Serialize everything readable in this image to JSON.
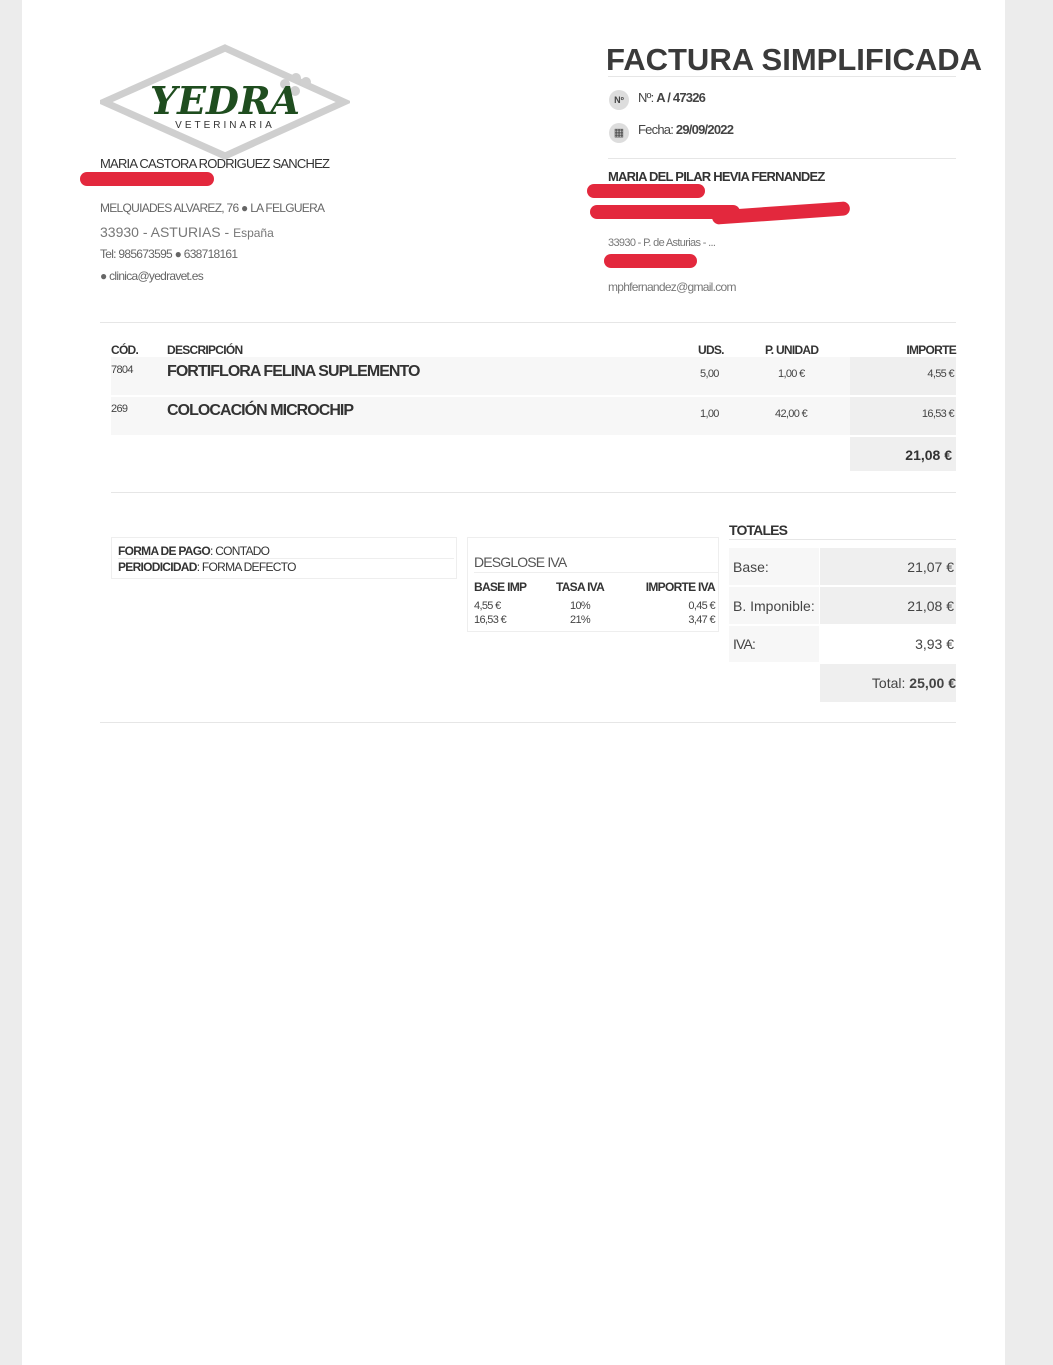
{
  "logo": {
    "name": "YEDRA",
    "sub": "VETERINARIA"
  },
  "issuer": {
    "name": "MARIA CASTORA RODRIGUEZ SANCHEZ",
    "address": "MELQUIADES ALVAREZ, 76 ● LA FELGUERA",
    "city": "33930 - ASTURIAS - ",
    "country": "España",
    "phone": "Tel: 985673595 ● 638718161",
    "email": "● clinica@yedravet.es"
  },
  "title": "FACTURA SIMPLIFICADA",
  "number": {
    "icon": "Nº",
    "label": "Nº: ",
    "value": "A / 47326"
  },
  "date": {
    "icon": "calendar-icon",
    "label": "Fecha: ",
    "value": "29/09/2022"
  },
  "client": {
    "name": "MARIA DEL PILAR HEVIA FERNANDEZ",
    "city": "33930 - P. de Asturias - ...",
    "email": "mphfernandez@gmail.com"
  },
  "table": {
    "headers": [
      "CÓD.",
      "DESCRIPCIÓN",
      "UDS.",
      "P. UNIDAD",
      "IMPORTE"
    ],
    "rows": [
      {
        "code": "7804",
        "desc": "FORTIFLORA FELINA SUPLEMENTO",
        "uds": "5,00",
        "price": "1,00 €",
        "amount": "4,55 €"
      },
      {
        "code": "269",
        "desc": "COLOCACIÓN MICROCHIP",
        "uds": "1,00",
        "price": "42,00 €",
        "amount": "16,53 €"
      }
    ],
    "subtotal": "21,08 €"
  },
  "payment": {
    "label1": "FORMA DE PAGO",
    "value1": ": CONTADO",
    "label2": "PERIODICIDAD",
    "value2": ": FORMA DEFECTO"
  },
  "vat": {
    "title": "DESGLOSE IVA",
    "headers": [
      "BASE IMP",
      "TASA IVA",
      "IMPORTE IVA"
    ],
    "rows": [
      [
        "4,55 €",
        "10%",
        "0,45 €"
      ],
      [
        "16,53 €",
        "21%",
        "3,47 €"
      ]
    ]
  },
  "totals": {
    "title": "TOTALES",
    "base_label": "Base:",
    "base": "21,07 €",
    "imp_label": "B. Imponible:",
    "imp": "21,08 €",
    "iva_label": "IVA:",
    "iva": "3,93 €",
    "total_label": "Total: ",
    "total": "25,00 €"
  },
  "colors": {
    "redaction": "#e3283d",
    "logo_green": "#1f4d1f"
  }
}
